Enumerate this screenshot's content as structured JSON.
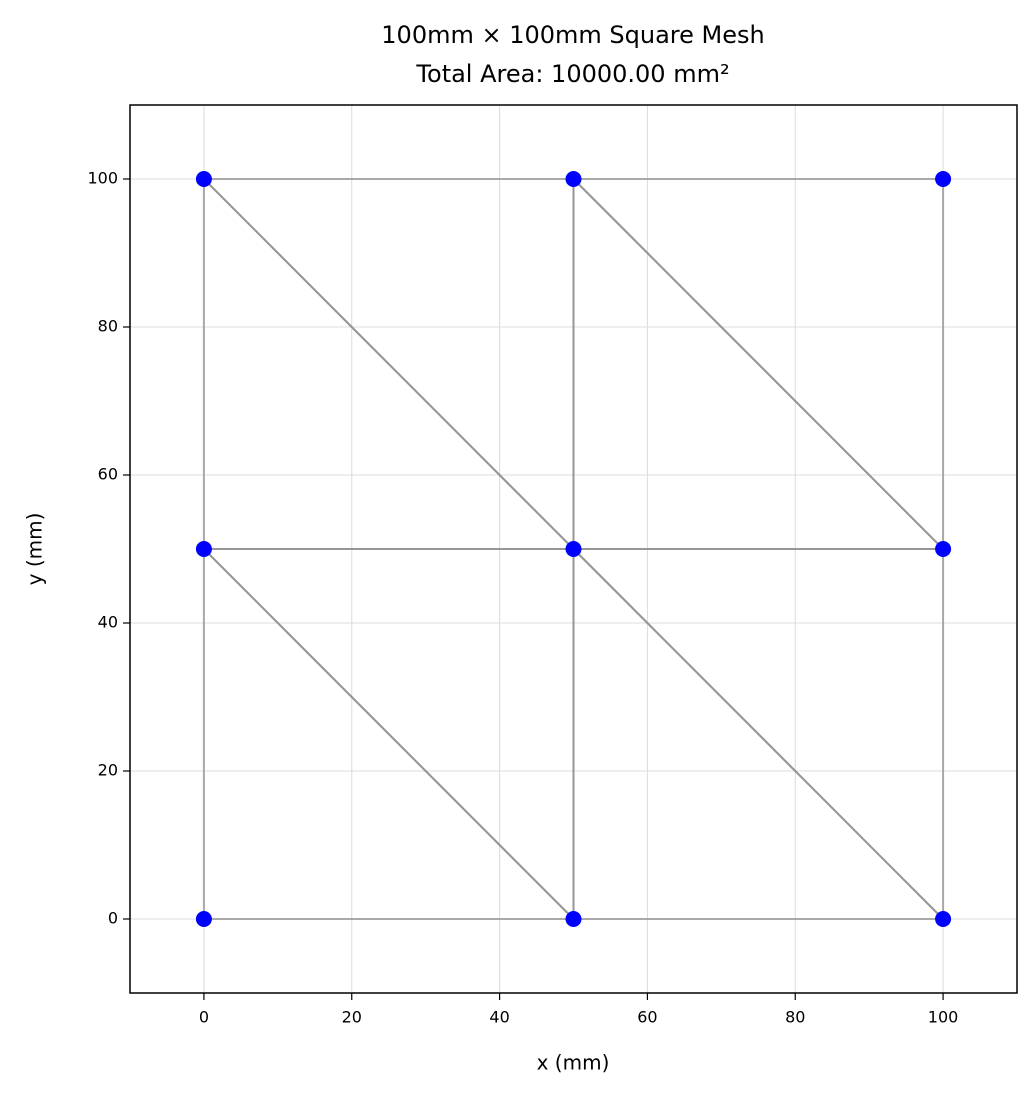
{
  "chart_data": {
    "type": "mesh",
    "title": "100mm × 100mm Square Mesh",
    "subtitle": "Total Area: 10000.00 mm²",
    "xlabel": "x (mm)",
    "ylabel": "y (mm)",
    "x": [
      0,
      50,
      100,
      0,
      50,
      100,
      0,
      50,
      100
    ],
    "y": [
      0,
      0,
      0,
      50,
      50,
      50,
      100,
      100,
      100
    ],
    "triangles": [
      [
        0,
        1,
        3
      ],
      [
        1,
        4,
        3
      ],
      [
        1,
        2,
        4
      ],
      [
        2,
        5,
        4
      ],
      [
        3,
        4,
        6
      ],
      [
        4,
        7,
        6
      ],
      [
        4,
        5,
        7
      ],
      [
        5,
        8,
        7
      ]
    ],
    "node_color": "#0000ff",
    "edge_color": "#8c8c8c",
    "xlim": [
      -10,
      110
    ],
    "ylim": [
      -10,
      110
    ],
    "xticks": [
      0,
      20,
      40,
      60,
      80,
      100
    ],
    "yticks": [
      0,
      20,
      40,
      60,
      80,
      100
    ],
    "grid": true
  }
}
